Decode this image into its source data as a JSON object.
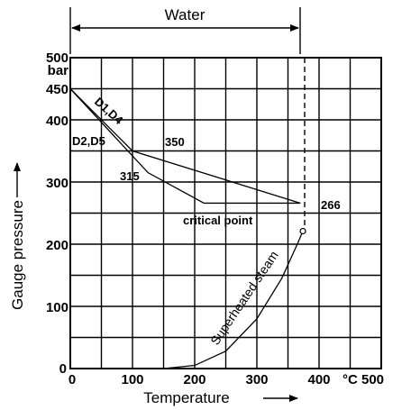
{
  "chart_data": {
    "type": "line",
    "xlabel": "Temperature",
    "ylabel": "Gauge pressure",
    "xlim": [
      0,
      500
    ],
    "ylim": [
      0,
      500
    ],
    "grid": true,
    "x_ticks": [
      "0",
      "100",
      "200",
      "300",
      "400"
    ],
    "x_unit": "°C 500",
    "y_ticks": [
      "0",
      "100",
      "200",
      "300",
      "400",
      "450"
    ],
    "y_top_value": "500",
    "y_unit": "bar",
    "water_label": "Water",
    "water_range": [
      0,
      370
    ],
    "series": [
      {
        "name": "D1,D4",
        "points": [
          [
            0,
            450
          ],
          [
            100,
            350
          ],
          [
            370,
            266
          ]
        ]
      },
      {
        "name": "D2,D5",
        "points": [
          [
            0,
            450
          ],
          [
            125,
            315
          ],
          [
            215,
            266
          ],
          [
            370,
            266
          ]
        ]
      },
      {
        "name": "Superheated steam",
        "points": [
          [
            150,
            0
          ],
          [
            200,
            5
          ],
          [
            250,
            28
          ],
          [
            300,
            80
          ],
          [
            340,
            145
          ],
          [
            365,
            200
          ],
          [
            374,
            221
          ]
        ]
      }
    ],
    "annotations": [
      {
        "text": "350",
        "x": 100,
        "y": 350
      },
      {
        "text": "315",
        "x": 125,
        "y": 315
      },
      {
        "text": "266",
        "x": 370,
        "y": 266
      },
      {
        "text": "critical point",
        "x": 374,
        "y": 221
      }
    ]
  }
}
